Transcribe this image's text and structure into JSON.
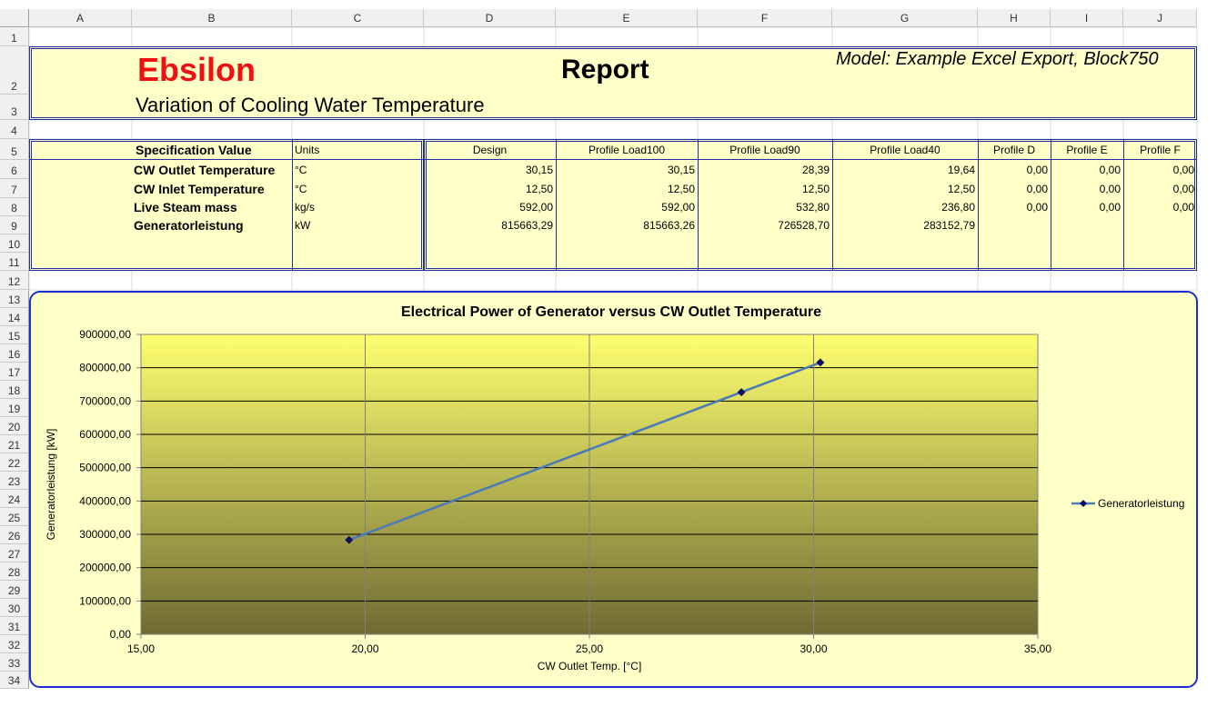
{
  "columns": [
    "A",
    "B",
    "C",
    "D",
    "E",
    "F",
    "G",
    "H",
    "I",
    "J"
  ],
  "rows": [
    "1",
    "2",
    "3",
    "4",
    "5",
    "6",
    "7",
    "8",
    "9",
    "10",
    "11",
    "12",
    "13",
    "14",
    "15",
    "16",
    "17",
    "18",
    "19",
    "20",
    "21",
    "22",
    "23",
    "24",
    "25",
    "26",
    "27",
    "28",
    "29",
    "30",
    "31",
    "32",
    "33",
    "34"
  ],
  "report": {
    "brand": "Ebsilon",
    "brand_color": "#ee1111",
    "title": "Report",
    "model": "Model: Example Excel Export, Block750",
    "subtitle": "Variation of Cooling Water Temperature"
  },
  "table": {
    "spec_header": "Specification Value",
    "units_header": "Units",
    "value_headers": [
      "Design",
      "Profile Load100",
      "Profile Load90",
      "Profile Load40",
      "Profile D",
      "Profile E",
      "Profile F"
    ],
    "rows": [
      {
        "name": "CW Outlet Temperature",
        "unit": "°C",
        "values": [
          "30,15",
          "30,15",
          "28,39",
          "19,64",
          "0,00",
          "0,00",
          "0,00"
        ]
      },
      {
        "name": "CW Inlet Temperature",
        "unit": "°C",
        "values": [
          "12,50",
          "12,50",
          "12,50",
          "12,50",
          "0,00",
          "0,00",
          "0,00"
        ]
      },
      {
        "name": "Live Steam mass",
        "unit": "kg/s",
        "values": [
          "592,00",
          "592,00",
          "532,80",
          "236,80",
          "0,00",
          "0,00",
          "0,00"
        ]
      },
      {
        "name": "Generatorleistung",
        "unit": "kW",
        "values": [
          "815663,29",
          "815663,26",
          "726528,70",
          "283152,79",
          "",
          "",
          ""
        ]
      }
    ]
  },
  "chart_data": {
    "type": "scatter",
    "title": "Electrical Power of Generator versus CW Outlet Temperature",
    "xlabel": "CW Outlet Temp. [°C]",
    "ylabel": "Generatorleistung [kW]",
    "xlim": [
      15,
      35
    ],
    "ylim": [
      0,
      900000
    ],
    "x_ticks": [
      "15,00",
      "20,00",
      "25,00",
      "30,00",
      "35,00"
    ],
    "y_ticks": [
      "0,00",
      "100000,00",
      "200000,00",
      "300000,00",
      "400000,00",
      "500000,00",
      "600000,00",
      "700000,00",
      "800000,00",
      "900000,00"
    ],
    "grid": true,
    "legend": "right",
    "series": [
      {
        "name": "Generatorleistung",
        "line_color": "#4a7ab8",
        "marker_color": "#101060",
        "x": [
          19.64,
          28.39,
          30.15
        ],
        "y": [
          283152.79,
          726528.7,
          815663.29
        ]
      }
    ]
  }
}
